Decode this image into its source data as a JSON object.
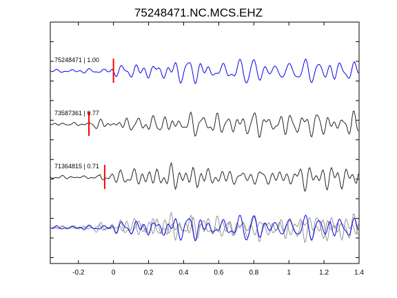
{
  "chart_data": {
    "type": "line",
    "title": "75248471.NC.MCS.EHZ",
    "xlabel": "",
    "ylabel": "",
    "xlim": [
      -0.36,
      1.4
    ],
    "xticks": [
      -0.2,
      0,
      0.2,
      0.4,
      0.6,
      0.8,
      1,
      1.2,
      1.4
    ],
    "xtick_labels": [
      "-0.2",
      "0",
      "0.2",
      "0.4",
      "0.6",
      "0.8",
      "1",
      "1.2",
      "1.4"
    ],
    "y_tick_count": 12,
    "grid": false,
    "legend": "none",
    "colors": {
      "template": "#0000ee",
      "match": "#222222",
      "overlay": "#888888",
      "pick": "#ff0000"
    },
    "traces": [
      {
        "label": "75248471 | 1.00",
        "id": "75248471",
        "correlation": 1.0,
        "pick_time": 0.0,
        "style": "template",
        "seed": 11,
        "onset": -0.02,
        "amp": 21
      },
      {
        "label": "73587361 | 0.77",
        "id": "73587361",
        "correlation": 0.77,
        "pick_time": -0.14,
        "style": "match",
        "seed": 23,
        "onset": -0.12,
        "amp": 19
      },
      {
        "label": "71364815 | 0.71",
        "id": "71364815",
        "correlation": 0.71,
        "pick_time": -0.05,
        "style": "match",
        "seed": 37,
        "onset": -0.08,
        "amp": 23
      }
    ],
    "stack": {
      "name": "overlay",
      "seeds": [
        23,
        37,
        11
      ]
    }
  }
}
